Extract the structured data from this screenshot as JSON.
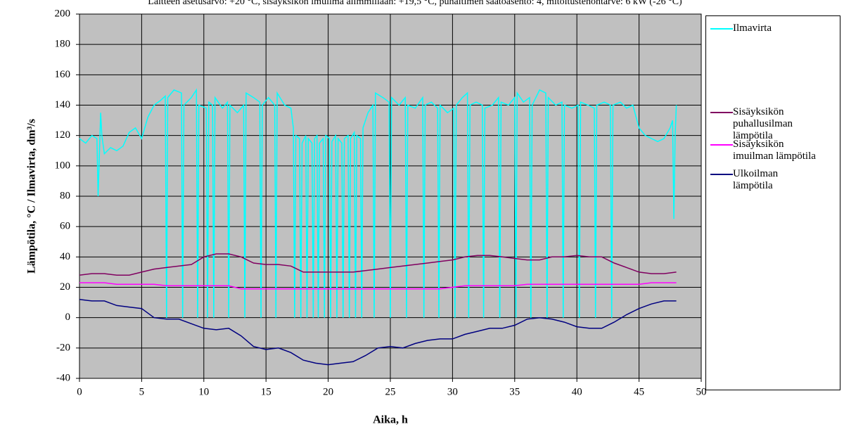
{
  "chart_data": {
    "type": "line",
    "title": "Laitteen asetusarvo: +20 °C, sisäyksikön imuilma alimmillaan: +19,5 °C, puhaltimen säätöasento: 4, mitoitustehontarve: 6 kW (-26 °C)",
    "x_label": "Aika, h",
    "y_label": "Lämpötila, °C / Ilmavirta, dm³/s",
    "xlim": [
      0,
      50
    ],
    "ylim": [
      -40,
      200
    ],
    "xticks": [
      0,
      5,
      10,
      15,
      20,
      25,
      30,
      35,
      40,
      45,
      50
    ],
    "yticks": [
      -40,
      -20,
      0,
      20,
      40,
      60,
      80,
      100,
      120,
      140,
      160,
      180,
      200
    ],
    "grid": true,
    "background": "#c0c0c0",
    "legend": "right",
    "series": [
      {
        "name": "Ilmavirta",
        "color": "#00ffff",
        "x": [
          0,
          0.5,
          1,
          1.4,
          1.5,
          1.7,
          1.8,
          2,
          2.5,
          3,
          3.5,
          4,
          4.5,
          5,
          5.5,
          6,
          6.5,
          6.9,
          7,
          7.1,
          7.6,
          8.2,
          8.3,
          8.4,
          9,
          9.4,
          9.5,
          9.6,
          10.2,
          10.3,
          10.4,
          10.7,
          10.8,
          10.9,
          11.5,
          11.9,
          12,
          12.1,
          12.7,
          13.2,
          13.3,
          13.4,
          14,
          14.5,
          14.6,
          14.7,
          15.2,
          15.7,
          15.8,
          15.9,
          16.5,
          17,
          17.2,
          17.3,
          17.4,
          17.7,
          17.8,
          17.9,
          18.2,
          18.3,
          18.4,
          18.7,
          18.8,
          18.9,
          19.1,
          19.2,
          19.3,
          19.6,
          19.7,
          19.8,
          20.1,
          20.2,
          20.3,
          20.6,
          20.7,
          20.8,
          21.1,
          21.2,
          21.3,
          21.6,
          21.7,
          21.8,
          22.1,
          22.2,
          22.3,
          22.6,
          22.7,
          22.8,
          23.2,
          23.6,
          23.7,
          23.8,
          24.4,
          24.9,
          25,
          25.1,
          25.7,
          26.2,
          26.3,
          26.4,
          27,
          27.6,
          27.7,
          27.8,
          28.3,
          28.8,
          28.9,
          29,
          29.6,
          30.1,
          30.2,
          30.3,
          30.8,
          31.2,
          31.3,
          31.4,
          31.9,
          32.4,
          32.5,
          32.6,
          33.2,
          33.7,
          33.8,
          33.9,
          34.5,
          35,
          35.1,
          35.2,
          35.7,
          36.2,
          36.3,
          36.4,
          37,
          37.5,
          37.6,
          37.7,
          38.3,
          38.8,
          38.9,
          39,
          39.6,
          40.1,
          40.2,
          40.3,
          40.9,
          41.4,
          41.5,
          41.6,
          42.2,
          42.7,
          42.8,
          42.9,
          43.5,
          44,
          44.5,
          45,
          45.5,
          46,
          46.5,
          47,
          47.5,
          47.7,
          47.8,
          47.9,
          48
        ],
        "values": [
          118,
          115,
          120,
          118,
          80,
          135,
          120,
          108,
          112,
          110,
          113,
          122,
          125,
          118,
          132,
          140,
          143,
          146,
          0,
          145,
          150,
          148,
          0,
          140,
          145,
          150,
          0,
          140,
          138,
          0,
          142,
          140,
          0,
          145,
          138,
          142,
          0,
          140,
          135,
          140,
          0,
          148,
          145,
          142,
          0,
          140,
          145,
          140,
          0,
          148,
          140,
          138,
          125,
          0,
          120,
          118,
          0,
          115,
          120,
          0,
          118,
          115,
          0,
          118,
          120,
          0,
          115,
          118,
          0,
          120,
          118,
          0,
          116,
          120,
          0,
          118,
          115,
          0,
          118,
          120,
          0,
          118,
          122,
          0,
          120,
          118,
          0,
          125,
          135,
          140,
          0,
          148,
          145,
          142,
          0,
          145,
          140,
          145,
          0,
          140,
          138,
          145,
          0,
          140,
          142,
          138,
          0,
          140,
          135,
          138,
          0,
          140,
          145,
          148,
          0,
          140,
          142,
          140,
          0,
          138,
          140,
          145,
          0,
          142,
          140,
          145,
          0,
          148,
          142,
          145,
          0,
          140,
          150,
          148,
          0,
          145,
          140,
          142,
          0,
          140,
          138,
          140,
          0,
          142,
          140,
          138,
          0,
          140,
          142,
          140,
          0,
          140,
          142,
          138,
          140,
          125,
          120,
          118,
          116,
          118,
          125,
          130,
          65,
          120,
          140
        ]
      },
      {
        "name": "Sisäyksikön puhallusilman lämpötila",
        "color": "#800060",
        "x": [
          0,
          1,
          2,
          3,
          4,
          5,
          6,
          7,
          8,
          9,
          10,
          11,
          12,
          13,
          14,
          15,
          16,
          17,
          18,
          19,
          20,
          21,
          22,
          23,
          24,
          25,
          26,
          27,
          28,
          29,
          30,
          31,
          32,
          33,
          34,
          35,
          36,
          37,
          38,
          39,
          40,
          41,
          42,
          43,
          44,
          45,
          46,
          47,
          48
        ],
        "values": [
          28,
          29,
          29,
          28,
          28,
          30,
          32,
          33,
          34,
          35,
          40,
          42,
          42,
          40,
          36,
          35,
          35,
          34,
          30,
          30,
          30,
          30,
          30,
          31,
          32,
          33,
          34,
          35,
          36,
          37,
          38,
          40,
          41,
          41,
          40,
          39,
          38,
          38,
          40,
          40,
          41,
          40,
          40,
          36,
          33,
          30,
          29,
          29,
          30
        ]
      },
      {
        "name": "Sisäyksikön imuilman lämpötila",
        "color": "#ff00ff",
        "x": [
          0,
          1,
          2,
          3,
          4,
          5,
          6,
          7,
          8,
          9,
          10,
          11,
          12,
          13,
          14,
          15,
          16,
          17,
          18,
          19,
          20,
          21,
          22,
          23,
          24,
          25,
          26,
          27,
          28,
          29,
          30,
          31,
          32,
          33,
          34,
          35,
          36,
          37,
          38,
          39,
          40,
          41,
          42,
          43,
          44,
          45,
          46,
          47,
          48
        ],
        "values": [
          23,
          23,
          23,
          22,
          22,
          22,
          22,
          21,
          21,
          21,
          21,
          21,
          21,
          19,
          19,
          19,
          19,
          19,
          19,
          19,
          19,
          19,
          19,
          19,
          19,
          19,
          19,
          19,
          19,
          19,
          20,
          21,
          21,
          21,
          21,
          21,
          22,
          22,
          22,
          22,
          22,
          22,
          22,
          22,
          22,
          22,
          23,
          23,
          23
        ]
      },
      {
        "name": "Ulkoilman lämpötila",
        "color": "#000080",
        "x": [
          0,
          1,
          2,
          3,
          4,
          5,
          6,
          7,
          8,
          9,
          10,
          11,
          12,
          13,
          14,
          15,
          16,
          17,
          18,
          19,
          20,
          21,
          22,
          23,
          24,
          25,
          26,
          27,
          28,
          29,
          30,
          31,
          32,
          33,
          34,
          35,
          36,
          37,
          38,
          39,
          40,
          41,
          42,
          43,
          44,
          45,
          46,
          47,
          48
        ],
        "values": [
          12,
          11,
          11,
          8,
          7,
          6,
          0,
          -1,
          -1,
          -4,
          -7,
          -8,
          -7,
          -12,
          -19,
          -21,
          -20,
          -23,
          -28,
          -30,
          -31,
          -30,
          -29,
          -25,
          -20,
          -19,
          -20,
          -17,
          -15,
          -14,
          -14,
          -11,
          -9,
          -7,
          -7,
          -5,
          -1,
          0,
          -1,
          -3,
          -6,
          -7,
          -7,
          -3,
          2,
          6,
          9,
          11,
          11
        ]
      }
    ]
  }
}
